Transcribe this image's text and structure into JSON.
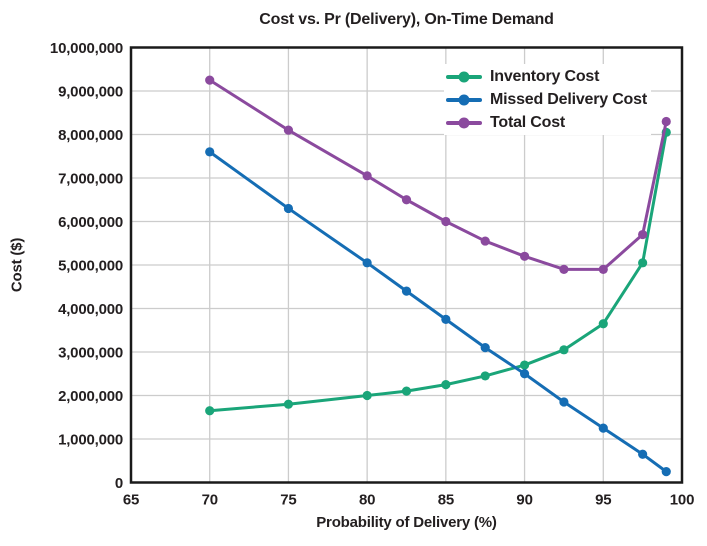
{
  "chart_data": {
    "type": "line",
    "title": "Cost vs. Pr (Delivery), On-Time Demand",
    "xlabel": "Probability of Delivery (%)",
    "ylabel": "Cost ($)",
    "xlim": [
      65,
      100
    ],
    "ylim": [
      0,
      10000000
    ],
    "x_ticks": [
      65,
      70,
      75,
      80,
      85,
      90,
      95,
      100
    ],
    "y_ticks": [
      "0",
      "1,000,000",
      "2,000,000",
      "3,000,000",
      "4,000,000",
      "5,000,000",
      "6,000,000",
      "7,000,000",
      "8,000,000",
      "9,000,000",
      "10,000,000"
    ],
    "grid": true,
    "legend_position": "inside-top-right",
    "x": [
      70,
      75,
      80,
      82.5,
      85,
      87.5,
      90,
      92.5,
      95,
      97.5,
      99
    ],
    "series": [
      {
        "name": "Inventory Cost",
        "color": "#1aa579",
        "values": [
          1650000,
          1800000,
          2000000,
          2100000,
          2250000,
          2450000,
          2700000,
          3050000,
          3650000,
          5050000,
          8050000
        ]
      },
      {
        "name": "Missed Delivery Cost",
        "color": "#156db4",
        "values": [
          7600000,
          6300000,
          5050000,
          4400000,
          3750000,
          3100000,
          2500000,
          1850000,
          1250000,
          650000,
          250000
        ]
      },
      {
        "name": "Total Cost",
        "color": "#8b4a9e",
        "values": [
          9250000,
          8100000,
          7050000,
          6500000,
          6000000,
          5550000,
          5200000,
          4900000,
          4900000,
          5700000,
          8300000
        ]
      }
    ],
    "style": {
      "text_color": "#231f20",
      "grid_color": "#cccccc",
      "axis_color": "#1a1a1a",
      "background": "#ffffff"
    }
  }
}
